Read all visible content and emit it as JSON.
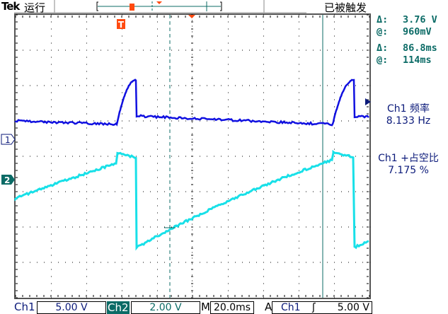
{
  "header": {
    "brand": "Tek",
    "run_state": "运行",
    "trigger_state": "已被触发"
  },
  "cursors": {
    "delta_v_label": "Δ:",
    "delta_v": "3.76 V",
    "at_v_label": "@:",
    "at_v": "960mV",
    "delta_t_label": "Δ:",
    "delta_t": "86.8ms",
    "at_t_label": "@:",
    "at_t": "114ms"
  },
  "measurements": [
    {
      "title": "Ch1 频率",
      "value": "8.133 Hz"
    },
    {
      "title": "Ch1 +占空比",
      "value": "7.175 %"
    }
  ],
  "markers": {
    "ch1": "1",
    "ch2": "2",
    "trigger": "T"
  },
  "footer": {
    "ch1_label": "Ch1",
    "ch1_scale": "5.00 V",
    "ch2_label": "Ch2",
    "ch2_scale": "2.00 V",
    "m_label": "M",
    "timebase": "20.0ms",
    "a_label": "A",
    "trig_source": "Ch1",
    "trig_slope_icon": "rising-edge-icon",
    "trig_level": "5.00 V"
  },
  "colors": {
    "ch1": "#1010e0",
    "ch2": "#18e0e8",
    "accent": "#0b6b66",
    "trigger": "#ff4a10"
  }
}
